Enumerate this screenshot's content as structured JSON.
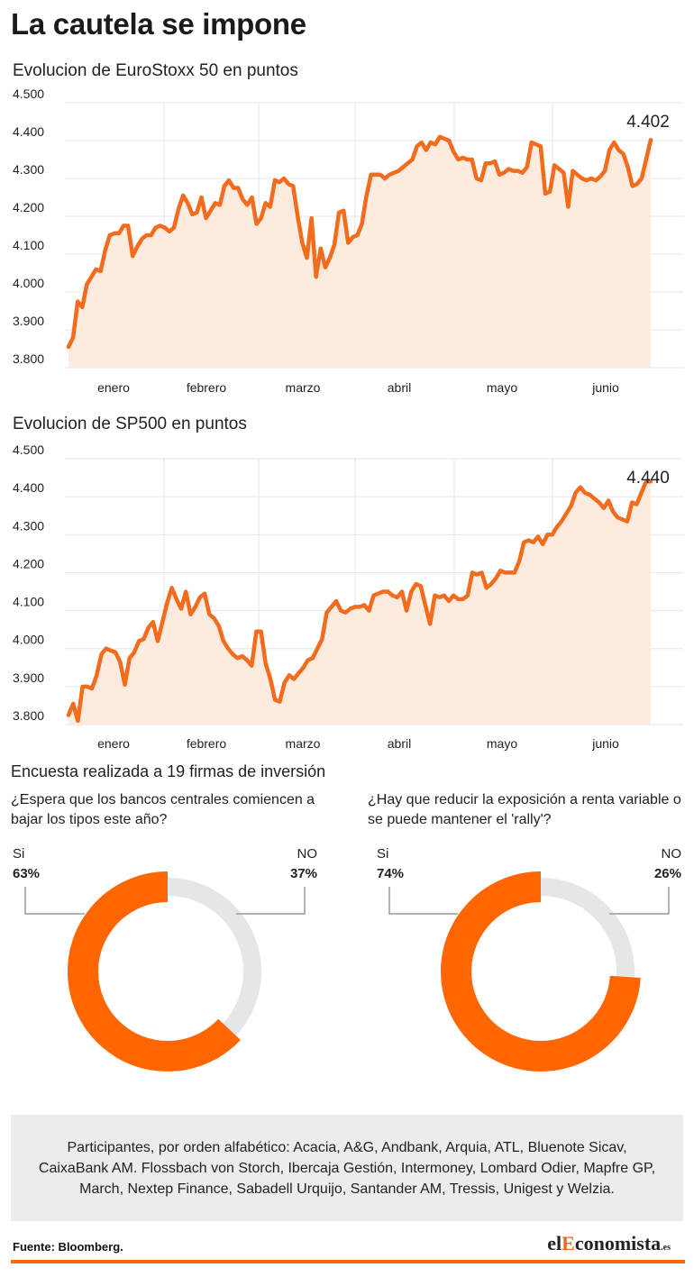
{
  "title": "La cautela se impone",
  "charts": [
    {
      "title": "Evolucion de EuroStoxx 50 en puntos",
      "last_label": "4.402"
    },
    {
      "title": "Evolucion de SP500 en puntos",
      "last_label": "4.440"
    }
  ],
  "colors": {
    "line": "#f36b1c",
    "area": "#fdebdf",
    "accent": "#ff6600",
    "donut_rest": "#e6e6e6",
    "grid": "#e6e6e6",
    "connector": "#9a9a9a"
  },
  "chart_data": [
    {
      "type": "area",
      "title": "Evolucion de EuroStoxx 50 en puntos",
      "xlabel": "",
      "ylabel": "",
      "ylim": [
        3800,
        4500
      ],
      "y_ticks": [
        3800,
        3900,
        4000,
        4100,
        4200,
        4300,
        4400,
        4500
      ],
      "y_tick_labels": [
        "3.800",
        "3.900",
        "4.000",
        "4.100",
        "4.200",
        "4.300",
        "4.400",
        "4.500"
      ],
      "x_month_labels": [
        "enero",
        "febrero",
        "marzo",
        "abril",
        "mayo",
        "junio"
      ],
      "grid": true,
      "last_value_label": "4.402",
      "x": [
        0,
        1,
        2,
        3,
        4,
        5,
        6,
        7,
        8,
        9,
        10,
        11,
        12,
        13,
        14,
        15,
        16,
        17,
        18,
        19,
        20,
        21,
        22,
        23,
        24,
        25,
        26,
        27,
        28,
        29,
        30,
        31,
        32,
        33,
        34,
        35,
        36,
        37,
        38,
        39,
        40,
        41,
        42,
        43,
        44,
        45,
        46,
        47,
        48,
        49,
        50,
        51,
        52,
        53,
        54,
        55,
        56,
        57,
        58,
        59,
        60,
        61,
        62,
        63,
        64,
        65,
        66,
        67,
        68,
        69,
        70,
        71,
        72,
        73,
        74,
        75,
        76,
        77,
        78,
        79,
        80,
        81,
        82,
        83,
        84,
        85,
        86,
        87,
        88,
        89,
        90,
        91,
        92,
        93,
        94,
        95,
        96,
        97,
        98,
        99,
        100,
        101,
        102,
        103,
        104,
        105,
        106,
        107,
        108,
        109,
        110,
        111,
        112,
        113,
        114,
        115,
        116,
        117,
        118,
        119,
        120,
        121,
        122,
        123,
        124,
        125,
        126,
        127
      ],
      "values": [
        3855,
        3880,
        3975,
        3960,
        4020,
        4040,
        4060,
        4055,
        4110,
        4150,
        4155,
        4155,
        4175,
        4175,
        4095,
        4120,
        4140,
        4150,
        4150,
        4170,
        4175,
        4170,
        4160,
        4170,
        4220,
        4255,
        4235,
        4205,
        4210,
        4250,
        4195,
        4215,
        4235,
        4230,
        4280,
        4295,
        4275,
        4275,
        4245,
        4230,
        4250,
        4180,
        4195,
        4235,
        4225,
        4295,
        4290,
        4300,
        4285,
        4280,
        4200,
        4130,
        4090,
        4195,
        4040,
        4115,
        4065,
        4090,
        4125,
        4210,
        4215,
        4130,
        4145,
        4150,
        4180,
        4255,
        4310,
        4310,
        4310,
        4300,
        4310,
        4315,
        4320,
        4330,
        4340,
        4350,
        4385,
        4395,
        4375,
        4395,
        4390,
        4410,
        4405,
        4400,
        4370,
        4350,
        4355,
        4350,
        4350,
        4300,
        4295,
        4340,
        4340,
        4345,
        4310,
        4315,
        4325,
        4320,
        4320,
        4315,
        4330,
        4395,
        4390,
        4385,
        4260,
        4265,
        4335,
        4325,
        4315,
        4225,
        4320,
        4310,
        4300,
        4295,
        4300,
        4295,
        4305,
        4320,
        4375,
        4395,
        4375,
        4365,
        4330,
        4280,
        4285,
        4300,
        4350,
        4402
      ]
    },
    {
      "type": "area",
      "title": "Evolucion de SP500 en puntos",
      "xlabel": "",
      "ylabel": "",
      "ylim": [
        3800,
        4500
      ],
      "y_ticks": [
        3800,
        3900,
        4000,
        4100,
        4200,
        4300,
        4400,
        4500
      ],
      "y_tick_labels": [
        "3.800",
        "3.900",
        "4.000",
        "4.100",
        "4.200",
        "4.300",
        "4.400",
        "4.500"
      ],
      "x_month_labels": [
        "enero",
        "febrero",
        "marzo",
        "abril",
        "mayo",
        "junio"
      ],
      "grid": true,
      "last_value_label": "4.440",
      "x": [
        0,
        1,
        2,
        3,
        4,
        5,
        6,
        7,
        8,
        9,
        10,
        11,
        12,
        13,
        14,
        15,
        16,
        17,
        18,
        19,
        20,
        21,
        22,
        23,
        24,
        25,
        26,
        27,
        28,
        29,
        30,
        31,
        32,
        33,
        34,
        35,
        36,
        37,
        38,
        39,
        40,
        41,
        42,
        43,
        44,
        45,
        46,
        47,
        48,
        49,
        50,
        51,
        52,
        53,
        54,
        55,
        56,
        57,
        58,
        59,
        60,
        61,
        62,
        63,
        64,
        65,
        66,
        67,
        68,
        69,
        70,
        71,
        72,
        73,
        74,
        75,
        76,
        77,
        78,
        79,
        80,
        81,
        82,
        83,
        84,
        85,
        86,
        87,
        88,
        89,
        90,
        91,
        92,
        93,
        94,
        95,
        96,
        97,
        98,
        99,
        100,
        101,
        102,
        103,
        104,
        105,
        106,
        107,
        108,
        109,
        110,
        111,
        112,
        113,
        114,
        115,
        116,
        117,
        118,
        119,
        120,
        121,
        122,
        123,
        124
      ],
      "values": [
        3825,
        3855,
        3810,
        3900,
        3900,
        3895,
        3930,
        3985,
        4000,
        3995,
        3990,
        3965,
        3905,
        3975,
        3990,
        4020,
        4025,
        4055,
        4070,
        4020,
        4070,
        4120,
        4160,
        4130,
        4105,
        4150,
        4090,
        4110,
        4135,
        4145,
        4090,
        4080,
        4060,
        4020,
        4000,
        3985,
        3975,
        3980,
        3970,
        3955,
        4045,
        4045,
        3960,
        3920,
        3865,
        3860,
        3910,
        3930,
        3920,
        3935,
        3950,
        3970,
        3975,
        4000,
        4025,
        4095,
        4110,
        4125,
        4100,
        4095,
        4105,
        4110,
        4110,
        4115,
        4100,
        4140,
        4145,
        4150,
        4150,
        4140,
        4135,
        4150,
        4100,
        4150,
        4170,
        4165,
        4115,
        4065,
        4140,
        4135,
        4140,
        4125,
        4140,
        4130,
        4130,
        4140,
        4200,
        4195,
        4200,
        4160,
        4170,
        4185,
        4205,
        4200,
        4200,
        4200,
        4230,
        4280,
        4285,
        4280,
        4295,
        4275,
        4300,
        4300,
        4320,
        4335,
        4355,
        4375,
        4410,
        4425,
        4410,
        4405,
        4395,
        4385,
        4370,
        4390,
        4360,
        4345,
        4340,
        4335,
        4385,
        4380,
        4410,
        4440,
        4440
      ]
    },
    {
      "type": "pie",
      "title": "¿Espera que los bancos centrales comiencen a bajar los tipos este año?",
      "categories": [
        "Si",
        "NO"
      ],
      "values": [
        63,
        37
      ],
      "value_labels": [
        "63%",
        "37%"
      ]
    },
    {
      "type": "pie",
      "title": "¿Hay que reducir la exposición a renta variable o se puede mantener el 'rally'?",
      "categories": [
        "Si",
        "NO"
      ],
      "values": [
        74,
        26
      ],
      "value_labels": [
        "74%",
        "26%"
      ]
    }
  ],
  "survey": {
    "title": "Encuesta realizada a 19 firmas de inversión",
    "q1": {
      "text": "¿Espera que los bancos centrales comiencen a bajar los tipos este año?",
      "yes_label": "Si",
      "yes_value": "63%",
      "no_label": "NO",
      "no_value": "37%"
    },
    "q2": {
      "text": "¿Hay que reducir la exposición a renta variable o se puede mantener el 'rally'?",
      "yes_label": "Si",
      "yes_value": "74%",
      "no_label": "NO",
      "no_value": "26%"
    }
  },
  "participants": "Participantes, por orden alfabético: Acacia, A&G, Andbank, Arquia, ATL, Bluenote Sicav, CaixaBank AM. Flossbach von Storch, Ibercaja Gestión, Intermoney, Lombard Odier, Mapfre GP, March, Nextep Finance, Sabadell Urquijo, Santander AM, Tressis, Unigest y Welzia.",
  "footer": {
    "source": "Fuente: Bloomberg.",
    "logo_el": "el",
    "logo_e": "E",
    "logo_rest": "conomista",
    "logo_es": ".es"
  }
}
